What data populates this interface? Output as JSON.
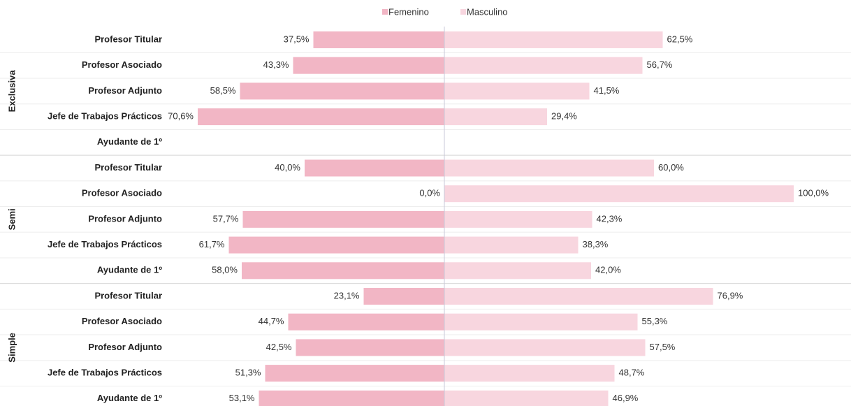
{
  "chart_data": {
    "type": "diverging-bar",
    "groups": [
      {
        "name": "Exclusiva",
        "categories": [
          "Profesor Titular",
          "Profesor Asociado",
          "Profesor Adjunto",
          "Jefe de Trabajos Prácticos",
          "Ayudante de 1º"
        ]
      },
      {
        "name": "Semi",
        "categories": [
          "Profesor Titular",
          "Profesor Asociado",
          "Profesor Adjunto",
          "Jefe de Trabajos Prácticos",
          "Ayudante de 1º"
        ]
      },
      {
        "name": "Simple",
        "categories": [
          "Profesor Titular",
          "Profesor Asociado",
          "Profesor Adjunto",
          "Jefe de Trabajos Prácticos",
          "Ayudante de 1º"
        ]
      }
    ],
    "series": [
      {
        "name": "Femenino",
        "color": "#f2b6c5",
        "values": [
          37.5,
          43.3,
          58.5,
          70.6,
          null,
          40.0,
          0.0,
          57.7,
          61.7,
          58.0,
          23.1,
          44.7,
          42.5,
          51.3,
          53.1
        ],
        "value_labels": [
          "37,5%",
          "43,3%",
          "58,5%",
          "70,6%",
          null,
          "40,0%",
          "0,0%",
          "57,7%",
          "61,7%",
          "58,0%",
          "23,1%",
          "44,7%",
          "42,5%",
          "51,3%",
          "53,1%"
        ]
      },
      {
        "name": "Masculino",
        "color": "#f8d6df",
        "values": [
          62.5,
          56.7,
          41.5,
          29.4,
          null,
          60.0,
          100.0,
          42.3,
          38.3,
          42.0,
          76.9,
          55.3,
          57.5,
          48.7,
          46.9
        ],
        "value_labels": [
          "62,5%",
          "56,7%",
          "41,5%",
          "29,4%",
          null,
          "60,0%",
          "100,0%",
          "42,3%",
          "38,3%",
          "42,0%",
          "76,9%",
          "55,3%",
          "57,5%",
          "48,7%",
          "46,9%"
        ]
      }
    ],
    "legend": "top"
  }
}
